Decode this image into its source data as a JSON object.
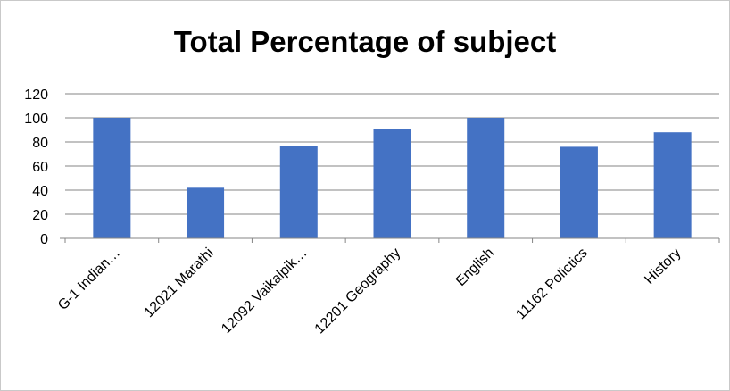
{
  "chart_data": {
    "type": "bar",
    "title": "Total Percentage of subject",
    "xlabel": "",
    "ylabel": "",
    "categories": [
      "G-1 Indian…",
      "12021 Marathi",
      "12092 Vaikalpik…",
      "12201 Geography",
      "English",
      "11162 Polictics",
      "History"
    ],
    "values": [
      100,
      42,
      77,
      91,
      100,
      76,
      88
    ],
    "ylim": [
      0,
      120
    ],
    "yticks": [
      "0",
      "20",
      "40",
      "60",
      "80",
      "100",
      "120"
    ],
    "grid": true,
    "legend": "none",
    "bar_color": "#4472C4"
  }
}
